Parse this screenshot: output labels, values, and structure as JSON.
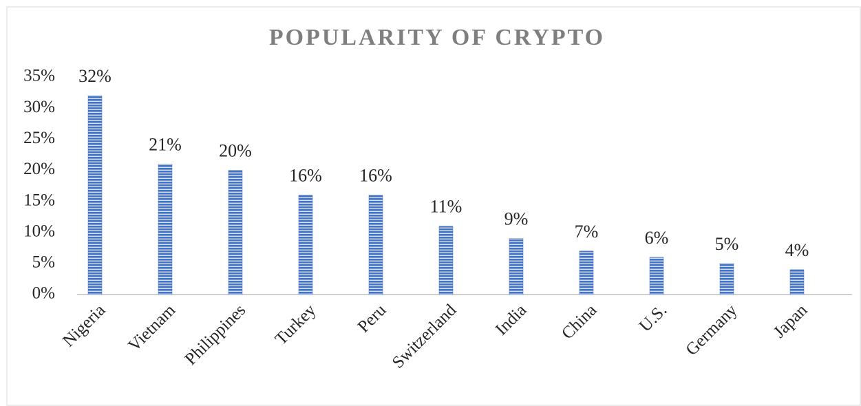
{
  "chart_data": {
    "type": "bar",
    "title": "POPULARITY OF CRYPTO",
    "categories": [
      "Nigeria",
      "Vietnam",
      "Philippines",
      "Turkey",
      "Peru",
      "Switzerland",
      "India",
      "China",
      "U.S.",
      "Germany",
      "Japan"
    ],
    "values": [
      32,
      21,
      20,
      16,
      16,
      11,
      9,
      7,
      6,
      5,
      4
    ],
    "value_labels": [
      "32%",
      "21%",
      "20%",
      "16%",
      "16%",
      "11%",
      "9%",
      "7%",
      "6%",
      "5%",
      "4%"
    ],
    "color": "#4472c4",
    "ylim": [
      0,
      35
    ],
    "yticks": [
      {
        "value": 0,
        "label": "0%"
      },
      {
        "value": 5,
        "label": "5%"
      },
      {
        "value": 10,
        "label": "10%"
      },
      {
        "value": 15,
        "label": "15%"
      },
      {
        "value": 20,
        "label": "20%"
      },
      {
        "value": 25,
        "label": "25%"
      },
      {
        "value": 30,
        "label": "30%"
      },
      {
        "value": 35,
        "label": "35%"
      }
    ],
    "grid": false
  }
}
